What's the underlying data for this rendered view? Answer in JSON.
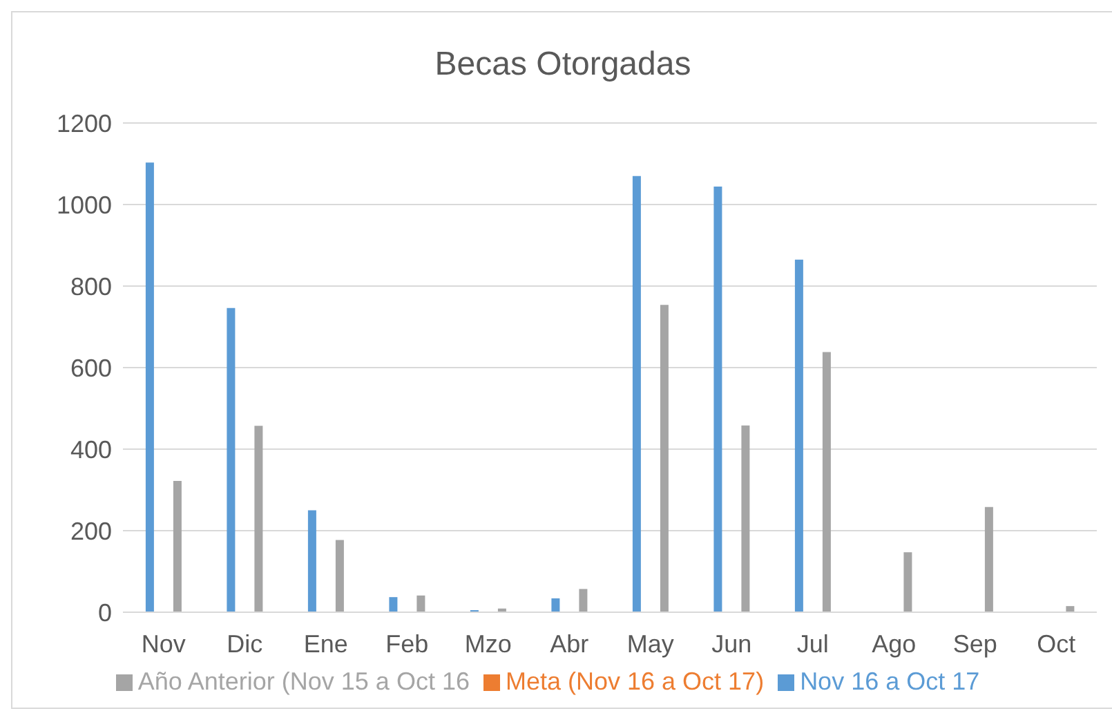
{
  "chart_data": {
    "type": "bar",
    "title": "Becas Otorgadas",
    "categories": [
      "Nov",
      "Dic",
      "Ene",
      "Feb",
      "Mzo",
      "Abr",
      "May",
      "Jun",
      "Jul",
      "Ago",
      "Sep",
      "Oct"
    ],
    "series": [
      {
        "name": "Nov 16 a Oct 17",
        "color": "#5b9bd5",
        "values": [
          1103,
          746,
          250,
          37,
          5,
          34,
          1070,
          1044,
          865,
          null,
          null,
          null
        ]
      },
      {
        "name": "Meta (Nov 16 a Oct 17)",
        "color": "#ed7d31",
        "values": [
          null,
          null,
          null,
          null,
          null,
          null,
          null,
          null,
          null,
          null,
          null,
          null
        ]
      },
      {
        "name": "Año Anterior (Nov 15 a Oct 16",
        "color": "#a5a5a5",
        "values": [
          322,
          457,
          177,
          41,
          9,
          57,
          754,
          458,
          638,
          147,
          258,
          15
        ]
      }
    ],
    "ylim": [
      0,
      1200
    ],
    "yticks": [
      0,
      200,
      400,
      600,
      800,
      1000,
      1200
    ],
    "grid": "y",
    "legend": "bottom"
  }
}
